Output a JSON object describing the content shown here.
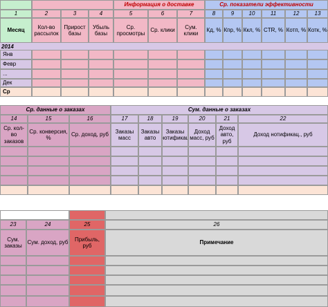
{
  "colors": {
    "green": "#c6efce",
    "pink": "#f2b8c6",
    "blue": "#b4c7f2",
    "mauve": "#d9a5c4",
    "lavender": "#d7c8e6",
    "peach": "#fce4d6",
    "grey": "#d9d9d9",
    "red": "#e06666",
    "title_red": "#c00000"
  },
  "table1": {
    "groups": {
      "delivery": "Информация о доставке",
      "efficiency": "Ср. показатели эффективности"
    },
    "numbers": [
      "1",
      "2",
      "3",
      "4",
      "5",
      "6",
      "7",
      "8",
      "9",
      "10",
      "11",
      "12",
      "13"
    ],
    "headers": [
      "Месяц",
      "Кол-во рассылок",
      "Прирост базы",
      "Убыль базы",
      "Ср. просмотры",
      "Ср. клики",
      "Сум. клики",
      "Кд, %",
      "Кпр, %",
      "Ккл, %",
      "CTR, %",
      "Котп, %",
      "Котк, %"
    ],
    "year": "2014",
    "months": [
      "Янв",
      "Февр",
      "...",
      "Дек",
      "Ср"
    ]
  },
  "table2": {
    "groups": {
      "avg_orders": "Ср. данные о заказах",
      "sum_orders": "Сум. данные о заказах"
    },
    "numbers": [
      "14",
      "15",
      "16",
      "17",
      "18",
      "19",
      "20",
      "21",
      "22"
    ],
    "headers": [
      "Ср. кол-во заказов",
      "Ср. конверсия, %",
      "Ср. доход, руб",
      "Заказы масс",
      "Заказы авто",
      "Заказы нотификац",
      "Доход масс, руб",
      "Доход авто, руб",
      "Доход нотификац., руб"
    ]
  },
  "table3": {
    "numbers": [
      "23",
      "24",
      "25",
      "26"
    ],
    "headers": [
      "Сум. заказы",
      "Сум. доход, руб",
      "Прибыль, руб",
      "Примечание"
    ]
  }
}
